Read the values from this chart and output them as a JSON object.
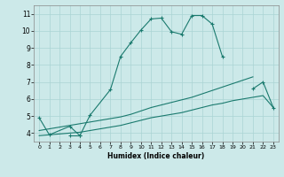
{
  "xlabel": "Humidex (Indice chaleur)",
  "xlim": [
    -0.5,
    23.5
  ],
  "ylim": [
    3.5,
    11.5
  ],
  "xticks": [
    0,
    1,
    2,
    3,
    4,
    5,
    6,
    7,
    8,
    9,
    10,
    11,
    12,
    13,
    14,
    15,
    16,
    17,
    18,
    19,
    20,
    21,
    22,
    23
  ],
  "yticks": [
    4,
    5,
    6,
    7,
    8,
    9,
    10,
    11
  ],
  "bg_color": "#cce9e9",
  "grid_color": "#aad4d4",
  "line_color": "#1a7a6e",
  "curve1_x": [
    0,
    1,
    3,
    4,
    5,
    7,
    8,
    9,
    10,
    11,
    12,
    13,
    14,
    15,
    16,
    17,
    18
  ],
  "curve1_y": [
    4.9,
    3.9,
    4.4,
    3.85,
    5.05,
    6.55,
    8.5,
    9.3,
    10.05,
    10.7,
    10.75,
    9.95,
    9.8,
    10.9,
    10.9,
    10.4,
    8.5
  ],
  "curve2_x": [
    3,
    4,
    21,
    22,
    23
  ],
  "curve2_y": [
    3.85,
    3.85,
    6.6,
    7.0,
    5.5
  ],
  "curve3_x": [
    0,
    1,
    2,
    3,
    4,
    5,
    6,
    7,
    8,
    9,
    10,
    11,
    12,
    13,
    14,
    15,
    16,
    17,
    18,
    19,
    20,
    21
  ],
  "curve3_y": [
    4.15,
    4.25,
    4.35,
    4.45,
    4.55,
    4.65,
    4.75,
    4.85,
    4.95,
    5.1,
    5.3,
    5.5,
    5.65,
    5.8,
    5.95,
    6.1,
    6.3,
    6.5,
    6.7,
    6.9,
    7.1,
    7.3
  ],
  "curve4_x": [
    0,
    1,
    2,
    3,
    4,
    5,
    6,
    7,
    8,
    9,
    10,
    11,
    12,
    13,
    14,
    15,
    16,
    17,
    18,
    19,
    20,
    21,
    22,
    23
  ],
  "curve4_y": [
    3.85,
    3.9,
    3.95,
    4.0,
    4.05,
    4.15,
    4.25,
    4.35,
    4.45,
    4.6,
    4.75,
    4.9,
    5.0,
    5.1,
    5.2,
    5.35,
    5.5,
    5.65,
    5.75,
    5.9,
    6.0,
    6.1,
    6.2,
    5.5
  ]
}
